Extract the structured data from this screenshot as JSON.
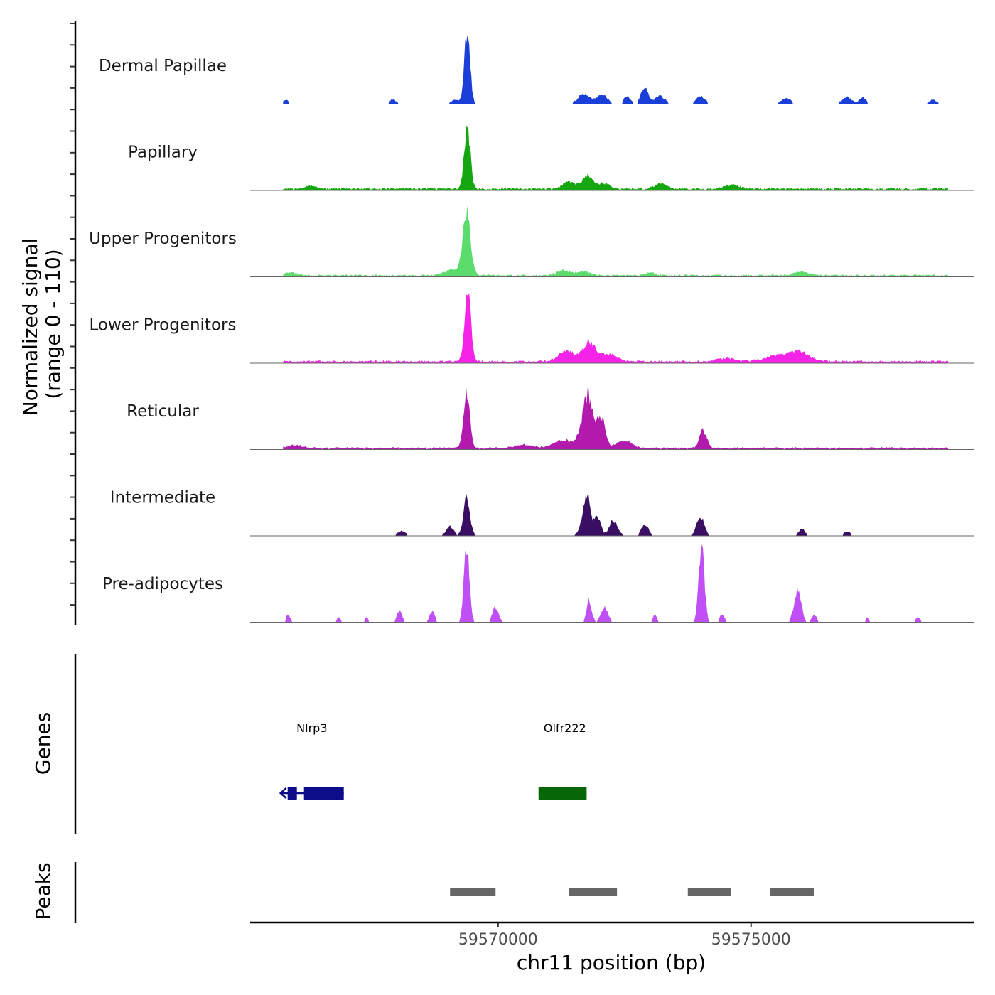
{
  "chart_data": {
    "type": "area",
    "title": "",
    "ylabel_line1": "Normalized signal",
    "ylabel_line2": "(range 0 - 110)",
    "yrange": [
      0,
      110
    ],
    "xlabel": "chr11 position (bp)",
    "xlim": [
      59565100,
      59579400
    ],
    "x_ticks": [
      {
        "value": 59570000,
        "label": "59570000"
      },
      {
        "value": 59575000,
        "label": "59575000"
      }
    ],
    "tracks": [
      {
        "name": "Dermal Papillae",
        "color": "#1a3fd8",
        "scale": 0.85,
        "peaks": [
          [
            59567920,
            0.06,
            50
          ],
          [
            59569140,
            0.05,
            60
          ],
          [
            59569390,
            1.0,
            55
          ],
          [
            59571700,
            0.13,
            110
          ],
          [
            59572050,
            0.12,
            100
          ],
          [
            59572550,
            0.1,
            60
          ],
          [
            59572900,
            0.22,
            70
          ],
          [
            59573200,
            0.1,
            90
          ],
          [
            59574000,
            0.1,
            80
          ],
          [
            59575700,
            0.07,
            80
          ],
          [
            59576900,
            0.08,
            90
          ],
          [
            59577200,
            0.08,
            60
          ],
          [
            59578600,
            0.05,
            60
          ],
          [
            59565800,
            0.04,
            60
          ]
        ],
        "noise": 0.015,
        "gaps": true
      },
      {
        "name": "Papillary",
        "color": "#16a60f",
        "scale": 0.85,
        "peaks": [
          [
            59569390,
            0.82,
            60
          ],
          [
            59571400,
            0.1,
            120
          ],
          [
            59571770,
            0.18,
            110
          ],
          [
            59572100,
            0.08,
            100
          ],
          [
            59573200,
            0.07,
            120
          ],
          [
            59566300,
            0.05,
            100
          ],
          [
            59574600,
            0.05,
            150
          ]
        ],
        "noise": 0.03,
        "gaps": false
      },
      {
        "name": "Upper Progenitors",
        "color": "#5cdc6c",
        "scale": 0.85,
        "peaks": [
          [
            59569380,
            0.85,
            75
          ],
          [
            59569100,
            0.08,
            150
          ],
          [
            59571300,
            0.07,
            130
          ],
          [
            59571700,
            0.06,
            110
          ],
          [
            59573000,
            0.04,
            100
          ],
          [
            59576000,
            0.05,
            150
          ],
          [
            59565900,
            0.04,
            120
          ]
        ],
        "noise": 0.025,
        "gaps": false
      },
      {
        "name": "Lower Progenitors",
        "color": "#f522e8",
        "scale": 0.85,
        "peaks": [
          [
            59569400,
            0.98,
            60
          ],
          [
            59571350,
            0.15,
            150
          ],
          [
            59571800,
            0.25,
            130
          ],
          [
            59572200,
            0.1,
            150
          ],
          [
            59575950,
            0.13,
            200
          ],
          [
            59575500,
            0.07,
            250
          ],
          [
            59574500,
            0.04,
            200
          ]
        ],
        "noise": 0.03,
        "gaps": false
      },
      {
        "name": "Reticular",
        "color": "#b21aad",
        "scale": 0.85,
        "peaks": [
          [
            59569380,
            0.78,
            60
          ],
          [
            59571770,
            0.7,
            110
          ],
          [
            59572040,
            0.4,
            80
          ],
          [
            59571300,
            0.1,
            200
          ],
          [
            59572500,
            0.1,
            150
          ],
          [
            59574050,
            0.25,
            70
          ],
          [
            59566000,
            0.04,
            150
          ],
          [
            59570500,
            0.04,
            200
          ]
        ],
        "noise": 0.025,
        "gaps": false
      },
      {
        "name": "Intermediate",
        "color": "#3a0f63",
        "scale": 0.85,
        "peaks": [
          [
            59569380,
            0.55,
            60
          ],
          [
            59571750,
            0.52,
            80
          ],
          [
            59571970,
            0.25,
            60
          ],
          [
            59572280,
            0.2,
            80
          ],
          [
            59572900,
            0.14,
            70
          ],
          [
            59574000,
            0.26,
            70
          ],
          [
            59576000,
            0.08,
            60
          ],
          [
            59576900,
            0.05,
            60
          ],
          [
            59569050,
            0.12,
            70
          ],
          [
            59568100,
            0.05,
            70
          ]
        ],
        "noise": 0.015,
        "gaps": true
      },
      {
        "name": "Pre-adipocytes",
        "color": "#c050f5",
        "scale": 0.9,
        "peaks": [
          [
            59569380,
            0.95,
            55
          ],
          [
            59574020,
            1.0,
            55
          ],
          [
            59575920,
            0.42,
            70
          ],
          [
            59571800,
            0.28,
            50
          ],
          [
            59572100,
            0.2,
            70
          ],
          [
            59569950,
            0.2,
            60
          ],
          [
            59568050,
            0.15,
            50
          ],
          [
            59568700,
            0.15,
            50
          ],
          [
            59565850,
            0.1,
            40
          ],
          [
            59573100,
            0.1,
            40
          ],
          [
            59574430,
            0.1,
            50
          ],
          [
            59576250,
            0.1,
            50
          ],
          [
            59577300,
            0.06,
            40
          ],
          [
            59578300,
            0.06,
            50
          ],
          [
            59566850,
            0.06,
            40
          ],
          [
            59567400,
            0.06,
            40
          ]
        ],
        "noise": 0.0,
        "gaps": true
      }
    ],
    "genes_axis_label": "Genes",
    "genes": [
      {
        "name": "Nlrp3",
        "start": 59565700,
        "end": 59566950,
        "color": "#0d0d8a",
        "strand": "-",
        "label_pos": 59566320
      },
      {
        "name": "Olfr222",
        "start": 59570800,
        "end": 59571750,
        "color": "#066706",
        "strand": "+",
        "label_pos": 59571320
      }
    ],
    "peaks_axis_label": "Peaks",
    "peak_regions": [
      {
        "start": 59569050,
        "end": 59569950
      },
      {
        "start": 59571400,
        "end": 59572350
      },
      {
        "start": 59573750,
        "end": 59574600
      },
      {
        "start": 59575380,
        "end": 59576250
      }
    ],
    "peak_region_color": "#666666"
  }
}
